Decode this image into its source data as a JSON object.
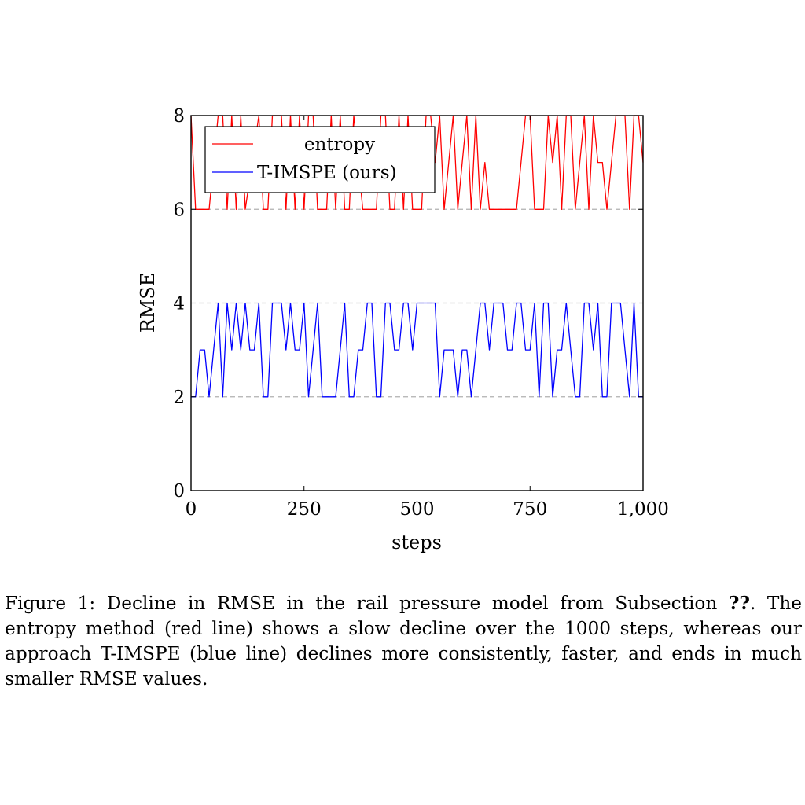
{
  "chart_data": {
    "type": "line",
    "xlabel": "steps",
    "ylabel": "RMSE",
    "xlim": [
      0,
      1000
    ],
    "ylim": [
      0,
      8
    ],
    "xticks": [
      0,
      250,
      500,
      750,
      1000
    ],
    "xtick_labels": [
      "0",
      "250",
      "500",
      "750",
      "1,000"
    ],
    "yticks": [
      0,
      2,
      4,
      6,
      8
    ],
    "ytick_labels": [
      "0",
      "2",
      "4",
      "6",
      "8"
    ],
    "grid": "horizontal dashed at 2, 4, 6",
    "legend_position": "top-left",
    "series": [
      {
        "name": "entropy",
        "color": "#ff0000",
        "x": [
          0,
          10,
          40,
          60,
          70,
          80,
          90,
          100,
          110,
          120,
          150,
          160,
          170,
          180,
          200,
          210,
          220,
          230,
          240,
          250,
          260,
          270,
          280,
          300,
          310,
          320,
          330,
          340,
          350,
          360,
          380,
          410,
          420,
          430,
          440,
          450,
          460,
          470,
          480,
          490,
          500,
          510,
          520,
          530,
          540,
          550,
          560,
          570,
          580,
          590,
          600,
          610,
          620,
          630,
          640,
          650,
          660,
          670,
          680,
          700,
          710,
          720,
          730,
          740,
          750,
          760,
          770,
          780,
          790,
          800,
          810,
          820,
          830,
          840,
          850,
          860,
          870,
          880,
          890,
          900,
          910,
          920,
          930,
          940,
          950,
          960,
          970,
          980,
          990,
          1000
        ],
        "values": [
          8,
          6,
          6,
          8,
          8,
          6,
          8,
          6,
          8,
          6,
          8,
          6,
          6,
          8,
          8,
          6,
          8,
          6,
          8,
          6,
          8,
          8,
          6,
          6,
          8,
          6,
          8,
          6,
          6,
          8,
          6,
          6,
          8,
          8,
          6,
          6,
          8,
          6,
          8,
          6,
          6,
          6,
          8,
          8,
          7,
          8,
          6,
          7,
          8,
          6,
          7,
          8,
          6,
          8,
          6,
          7,
          6,
          6,
          6,
          6,
          6,
          6,
          7,
          8,
          8,
          6,
          6,
          6,
          8,
          7,
          8,
          6,
          8,
          8,
          6,
          7,
          8,
          6,
          8,
          7,
          7,
          6,
          7,
          8,
          8,
          8,
          6,
          8,
          8,
          7
        ]
      },
      {
        "name": "T-IMSPE (ours)",
        "color": "#0000ff",
        "x": [
          0,
          10,
          20,
          30,
          40,
          60,
          70,
          80,
          90,
          100,
          110,
          120,
          130,
          140,
          150,
          160,
          170,
          180,
          200,
          210,
          220,
          230,
          240,
          250,
          260,
          270,
          280,
          290,
          310,
          320,
          330,
          340,
          350,
          360,
          370,
          380,
          390,
          400,
          410,
          420,
          430,
          440,
          450,
          460,
          470,
          480,
          490,
          500,
          510,
          520,
          530,
          540,
          550,
          560,
          570,
          580,
          590,
          600,
          610,
          620,
          630,
          640,
          650,
          660,
          670,
          680,
          690,
          700,
          710,
          720,
          730,
          740,
          750,
          760,
          770,
          780,
          790,
          800,
          810,
          820,
          830,
          840,
          850,
          860,
          870,
          880,
          890,
          900,
          910,
          920,
          930,
          940,
          950,
          960,
          970,
          980,
          990,
          1000
        ],
        "values": [
          2,
          2,
          3,
          3,
          2,
          4,
          2,
          4,
          3,
          4,
          3,
          4,
          3,
          3,
          4,
          2,
          2,
          4,
          4,
          3,
          4,
          3,
          3,
          4,
          2,
          3,
          4,
          2,
          2,
          2,
          3,
          4,
          2,
          2,
          3,
          3,
          4,
          4,
          2,
          2,
          4,
          4,
          3,
          3,
          4,
          4,
          3,
          4,
          4,
          4,
          4,
          4,
          2,
          3,
          3,
          3,
          2,
          3,
          3,
          2,
          3,
          4,
          4,
          3,
          4,
          4,
          4,
          3,
          3,
          4,
          4,
          3,
          3,
          4,
          2,
          4,
          4,
          2,
          3,
          3,
          4,
          3,
          2,
          2,
          4,
          4,
          3,
          4,
          2,
          2,
          4,
          4,
          4,
          3,
          2,
          4,
          2,
          2
        ]
      }
    ]
  },
  "caption": {
    "prefix": "Figure 1: Decline in RMSE in the rail pressure model from Subsection ",
    "ref": "??",
    "suffix": ". The entropy method (red line) shows a slow decline over the 1000 steps, whereas our approach T-IMSPE (blue line) declines more consistently, faster, and ends in much smaller RMSE values."
  }
}
